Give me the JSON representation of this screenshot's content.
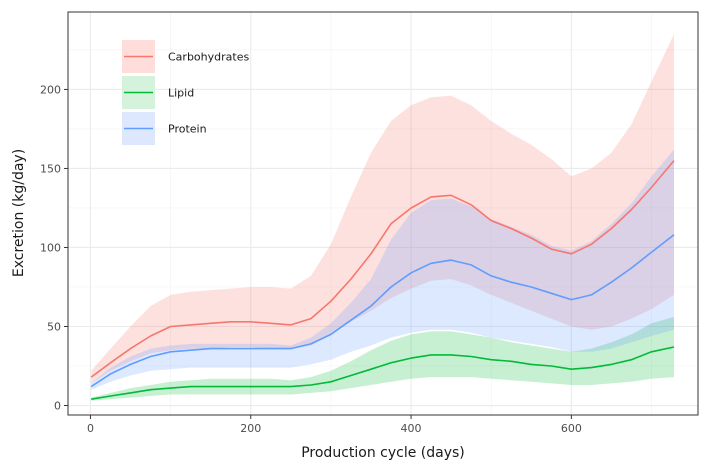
{
  "chart_data": {
    "type": "line",
    "xlabel": "Production cycle (days)",
    "ylabel": "Excretion (kg/day)",
    "xlim": [
      -28,
      758
    ],
    "ylim": [
      -6,
      249
    ],
    "x_ticks": [
      0,
      200,
      400,
      600
    ],
    "y_ticks": [
      0,
      50,
      100,
      150,
      200
    ],
    "grid": true,
    "legend_position": "top-left inside",
    "x": [
      1,
      25,
      50,
      75,
      100,
      125,
      150,
      175,
      200,
      225,
      250,
      275,
      300,
      325,
      350,
      375,
      400,
      425,
      450,
      475,
      500,
      525,
      550,
      575,
      600,
      625,
      650,
      675,
      700,
      728
    ],
    "series": [
      {
        "name": "Carbohydrates",
        "color": "#F8766D",
        "fill": "#FFDDDA",
        "values": [
          18,
          27,
          36,
          44,
          50,
          51,
          52,
          53,
          53,
          52,
          51,
          55,
          66,
          80,
          96,
          115,
          125,
          132,
          133,
          127,
          117,
          112,
          106,
          99,
          96,
          102,
          112,
          124,
          138,
          155
        ],
        "lower": [
          14,
          22,
          28,
          33,
          35,
          36,
          36,
          37,
          37,
          36,
          36,
          38,
          45,
          53,
          60,
          68,
          74,
          79,
          80,
          76,
          70,
          65,
          60,
          55,
          50,
          48,
          50,
          55,
          61,
          70
        ],
        "upper": [
          22,
          36,
          50,
          63,
          70,
          72,
          73,
          74,
          75,
          75,
          74,
          82,
          102,
          132,
          160,
          180,
          190,
          195,
          196,
          190,
          180,
          172,
          165,
          156,
          145,
          150,
          160,
          178,
          205,
          235
        ]
      },
      {
        "name": "Lipid",
        "color": "#00BA38",
        "fill": "#D4F2DC",
        "values": [
          4,
          6,
          8,
          10,
          11,
          12,
          12,
          12,
          12,
          12,
          12,
          13,
          15,
          19,
          23,
          27,
          30,
          32,
          32,
          31,
          29,
          28,
          26,
          25,
          23,
          24,
          26,
          29,
          34,
          37
        ],
        "lower": [
          3,
          4,
          5,
          6,
          7,
          7,
          7,
          7,
          7,
          7,
          7,
          8,
          9,
          11,
          13,
          15,
          17,
          18,
          18,
          18,
          17,
          16,
          15,
          14,
          13,
          13,
          14,
          15,
          17,
          18
        ],
        "upper": [
          5,
          8,
          11,
          13,
          15,
          16,
          17,
          17,
          17,
          17,
          16,
          18,
          22,
          28,
          35,
          41,
          45,
          47,
          47,
          45,
          43,
          40,
          38,
          36,
          34,
          36,
          40,
          45,
          52,
          56
        ]
      },
      {
        "name": "Protein",
        "color": "#619CFF",
        "fill": "#DDE8FF",
        "values": [
          12,
          20,
          26,
          31,
          34,
          35,
          36,
          36,
          36,
          36,
          36,
          39,
          45,
          54,
          63,
          75,
          84,
          90,
          92,
          89,
          82,
          78,
          75,
          71,
          67,
          70,
          78,
          87,
          97,
          108
        ],
        "lower": [
          10,
          15,
          19,
          22,
          23,
          24,
          24,
          24,
          24,
          24,
          24,
          26,
          29,
          34,
          38,
          43,
          46,
          48,
          48,
          46,
          43,
          41,
          39,
          37,
          34,
          34,
          36,
          40,
          44,
          48
        ],
        "upper": [
          14,
          24,
          31,
          36,
          38,
          39,
          39,
          39,
          39,
          39,
          38,
          43,
          52,
          65,
          80,
          105,
          122,
          130,
          131,
          126,
          118,
          113,
          108,
          101,
          98,
          104,
          115,
          128,
          145,
          162
        ]
      }
    ]
  }
}
